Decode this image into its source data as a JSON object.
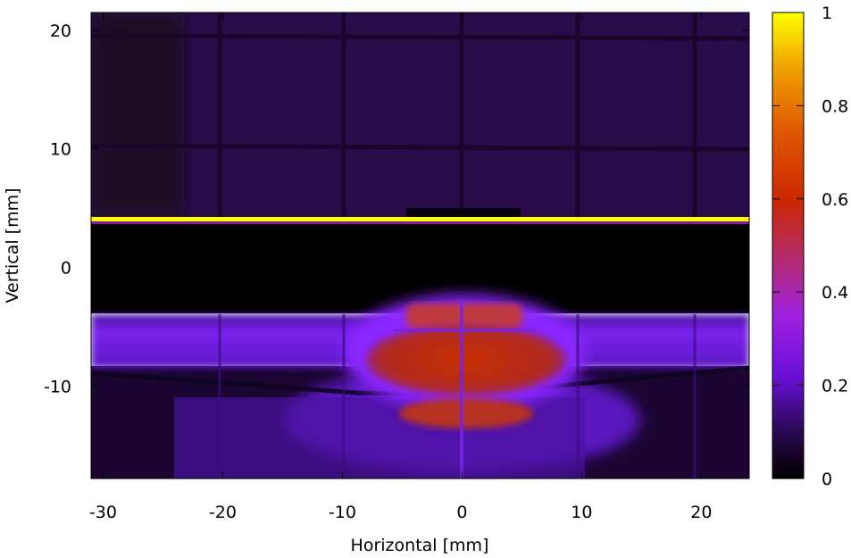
{
  "chart_data": {
    "type": "heatmap",
    "title": "",
    "xlabel": "Horizontal [mm]",
    "ylabel": "Vertical [mm]",
    "xlim": [
      -31,
      24
    ],
    "ylim": [
      -17.8,
      21.5
    ],
    "xticks": [
      -30,
      -20,
      -10,
      0,
      10,
      20
    ],
    "yticks": [
      -10,
      0,
      10,
      20
    ],
    "xtick_labels": [
      "-30",
      "-20",
      "-10",
      "0",
      "10",
      "20"
    ],
    "ytick_labels": [
      "-10",
      "0",
      "10",
      "20"
    ],
    "colorbar": {
      "range": [
        0,
        1
      ],
      "ticks": [
        0,
        0.2,
        0.4,
        0.6,
        0.8,
        1
      ],
      "tick_labels": [
        "0",
        "0.2",
        "0.4",
        "0.6",
        "0.8",
        "1"
      ],
      "colormap": [
        "#000000",
        "#3a0a66",
        "#8a1aff",
        "#b03090",
        "#d03000",
        "#e06000",
        "#f5c000",
        "#ffff00"
      ]
    },
    "features": [
      {
        "name": "background-glow",
        "x": [
          -31,
          24
        ],
        "y": [
          4.5,
          21.5
        ],
        "value": 0.1
      },
      {
        "name": "bright-line",
        "y": 4.0,
        "value": 1.0
      },
      {
        "name": "dark-gap",
        "x": [
          -31,
          24
        ],
        "y": [
          -4.5,
          3.6
        ],
        "value": 0.0
      },
      {
        "name": "side-band",
        "x": [
          -31,
          24
        ],
        "y": [
          -8.5,
          -4.2
        ],
        "value": 0.25
      },
      {
        "name": "hot-region-upper",
        "x": [
          -4.5,
          4.5
        ],
        "y": [
          -5.2,
          -3
        ],
        "value": 0.5
      },
      {
        "name": "hot-region-main",
        "x": [
          -7.5,
          8.5
        ],
        "y": [
          -10.5,
          -5.2
        ],
        "value": 0.6
      },
      {
        "name": "hot-region-lower",
        "x": [
          -5,
          6
        ],
        "y": [
          -13.5,
          -11
        ],
        "value": 0.55
      }
    ]
  }
}
